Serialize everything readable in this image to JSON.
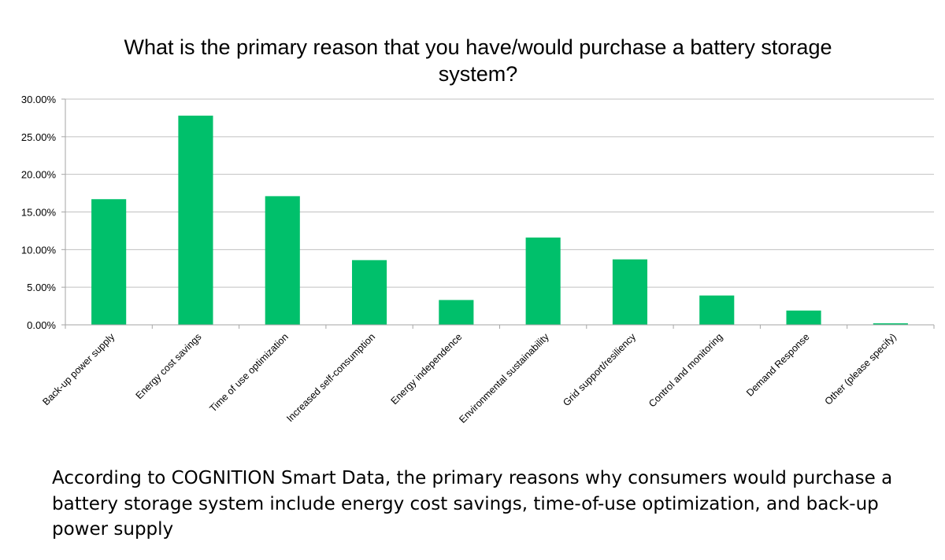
{
  "chart_data": {
    "type": "bar",
    "title": "What is the primary reason that you have/would purchase a battery storage system?",
    "title_lines": [
      "What is the primary reason that you have/would purchase a battery storage",
      "system?"
    ],
    "categories": [
      "Back-up power supply",
      "Energy cost savings",
      "Time of use optimization",
      "Increased self-consumption",
      "Energy independence",
      "Environmental sustainability",
      "Grid support/resiliency",
      "Control and monitoring",
      "Demand Response",
      "Other (please specify)"
    ],
    "values": [
      16.7,
      27.8,
      17.1,
      8.6,
      3.3,
      11.6,
      8.7,
      3.9,
      1.9,
      0.2
    ],
    "ylim": [
      0,
      30
    ],
    "yticks": [
      0,
      5,
      10,
      15,
      20,
      25,
      30
    ],
    "ytick_labels": [
      "0.00%",
      "5.00%",
      "10.00%",
      "15.00%",
      "20.00%",
      "25.00%",
      "30.00%"
    ],
    "xlabel": "",
    "ylabel": "",
    "grid": true,
    "legend": "none",
    "bar_color": "#00c06b",
    "grid_color": "#c0c0c0",
    "axis_color": "#a6a6a6"
  },
  "caption": "According to COGNITION Smart Data, the primary reasons why consumers would purchase a battery storage system include energy cost savings, time-of-use optimization, and back-up power supply"
}
